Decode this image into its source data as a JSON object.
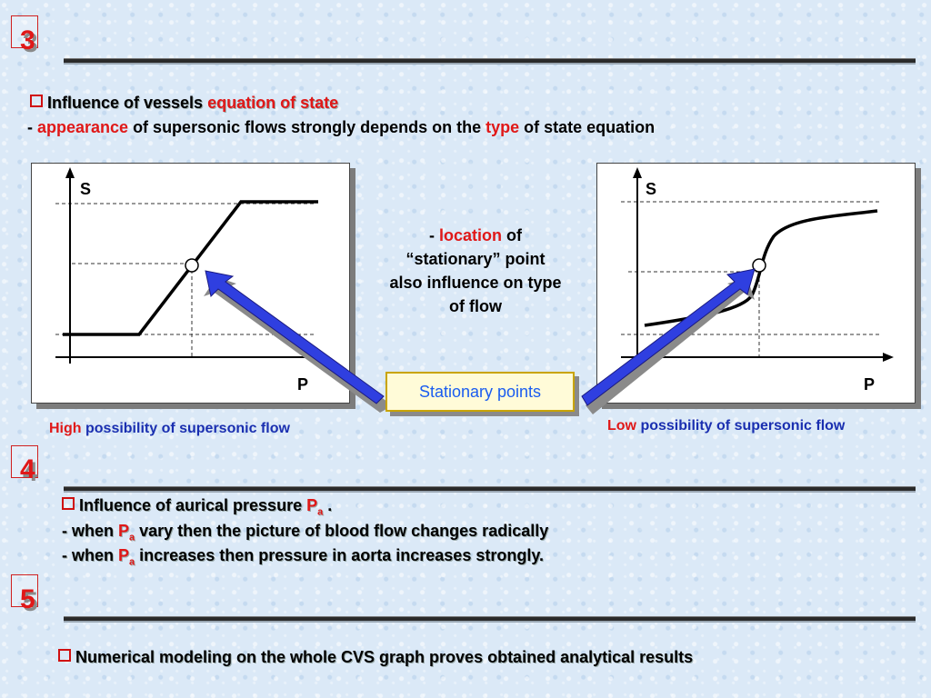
{
  "sections": [
    {
      "number": "3"
    },
    {
      "number": "4"
    },
    {
      "number": "5"
    }
  ],
  "sec3": {
    "heading_plain": "Influence of vessels ",
    "heading_red": "equation of state",
    "line_dash": "- ",
    "line_red": "appearance",
    "line_mid": " of supersonic flows strongly depends on the ",
    "line_red2": "type",
    "line_end": " of state equation"
  },
  "left_chart": {
    "y_label": "S",
    "x_label": "P",
    "caption_red": "High",
    "caption_blue": " possibility of supersonic flow"
  },
  "right_chart": {
    "y_label": "S",
    "x_label": "P",
    "caption_red": "Low",
    "caption_blue": " possibility of supersonic flow"
  },
  "center_note": {
    "dash": "- ",
    "red": "location",
    "rest1": " of",
    "line2": "“stationary” point",
    "line3": "also influence on type",
    "line4": "of flow"
  },
  "stationary_label": "Stationary points",
  "sec4": {
    "heading_plain": "Influence of aurical pressure ",
    "heading_red": "P",
    "heading_sub": "a",
    "heading_end": " .",
    "line1_a": "- when ",
    "line1_red": "P",
    "line1_sub": "a",
    "line1_b": " vary then the picture of blood flow changes radically",
    "line2_a": "- when ",
    "line2_red": "P",
    "line2_sub": "a",
    "line2_b": " increases then pressure in aorta increases strongly."
  },
  "sec5": {
    "heading": "Numerical modeling on the whole CVS graph proves obtained analytical results"
  },
  "colors": {
    "accent_red": "#e01818",
    "caption_blue": "#1a2fb0",
    "arrow_blue": "#2f3fe0",
    "label_blue": "#1a5cf0"
  }
}
